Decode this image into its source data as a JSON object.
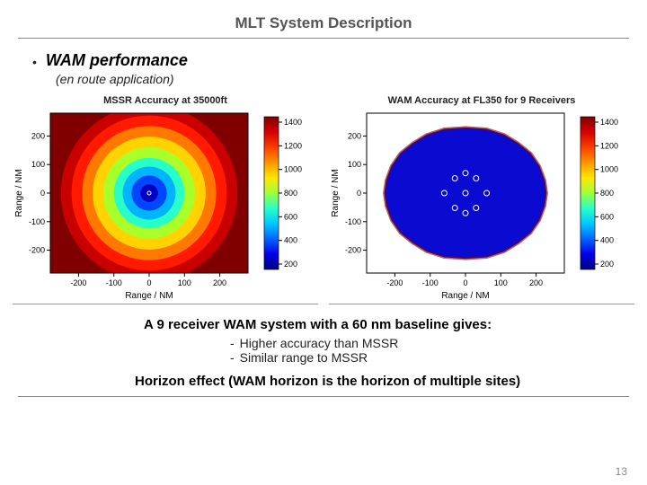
{
  "title": "MLT System Description",
  "bullet": {
    "heading": "WAM performance",
    "sub": "(en route application)"
  },
  "chart_left": {
    "type": "heatmap",
    "title": "MSSR Accuracy at 35000ft",
    "xlabel": "Range / NM",
    "ylabel": "Range / NM",
    "xticks": [
      "-200",
      "-100",
      "0",
      "100",
      "200"
    ],
    "yticks": [
      "-200",
      "-100",
      "0",
      "100",
      "200"
    ],
    "xlim": [
      -280,
      280
    ],
    "ylim": [
      -280,
      280
    ],
    "background_color": "#800000",
    "rings": [
      {
        "r": 250,
        "color": "#c80000"
      },
      {
        "r": 220,
        "color": "#ff1a00"
      },
      {
        "r": 190,
        "color": "#ff7800"
      },
      {
        "r": 160,
        "color": "#ffd200"
      },
      {
        "r": 130,
        "color": "#aaff2a"
      },
      {
        "r": 100,
        "color": "#28ffc8"
      },
      {
        "r": 75,
        "color": "#00b4ff"
      },
      {
        "r": 50,
        "color": "#0046ff"
      },
      {
        "r": 25,
        "color": "#0000c0"
      }
    ]
  },
  "chart_right": {
    "type": "heatmap",
    "title": "WAM Accuracy at FL350 for 9 Receivers",
    "xlabel": "Range / NM",
    "ylabel": "Range / NM",
    "xticks": [
      "-200",
      "-100",
      "0",
      "100",
      "200"
    ],
    "yticks": [
      "-200",
      "-100",
      "0",
      "100",
      "200"
    ],
    "xlim": [
      -280,
      280
    ],
    "ylim": [
      -280,
      280
    ],
    "background_color": "#ffffff",
    "shape_fill": "#0a0ad0",
    "shape_edge": "#800000",
    "markers": [
      {
        "x": 0,
        "y": 0
      },
      {
        "x": 60,
        "y": 0
      },
      {
        "x": -60,
        "y": 0
      },
      {
        "x": 30,
        "y": 52
      },
      {
        "x": -30,
        "y": 52
      },
      {
        "x": 30,
        "y": -52
      },
      {
        "x": -30,
        "y": -52
      },
      {
        "x": 0,
        "y": 70
      },
      {
        "x": 0,
        "y": -70
      }
    ],
    "marker_color": "#ffffff"
  },
  "colorbar": {
    "ticks": [
      "1400",
      "1200",
      "1000",
      "800",
      "600",
      "400",
      "200"
    ],
    "stops": [
      {
        "pct": 0,
        "color": "#800000"
      },
      {
        "pct": 10,
        "color": "#d40000"
      },
      {
        "pct": 20,
        "color": "#ff3c00"
      },
      {
        "pct": 30,
        "color": "#ff9600"
      },
      {
        "pct": 40,
        "color": "#ffe600"
      },
      {
        "pct": 50,
        "color": "#a0ff3c"
      },
      {
        "pct": 60,
        "color": "#28ffc8"
      },
      {
        "pct": 70,
        "color": "#00c8ff"
      },
      {
        "pct": 80,
        "color": "#0064ff"
      },
      {
        "pct": 90,
        "color": "#0000e6"
      },
      {
        "pct": 100,
        "color": "#000080"
      }
    ]
  },
  "summary": {
    "line": "A 9 receiver WAM system with a 60 nm baseline gives:",
    "items": [
      "Higher accuracy than MSSR",
      "Similar range to MSSR"
    ]
  },
  "horizon": "Horizon effect (WAM horizon is the horizon of multiple sites)",
  "page": "13",
  "axis_font_size": 10,
  "tick_font_size": 9
}
